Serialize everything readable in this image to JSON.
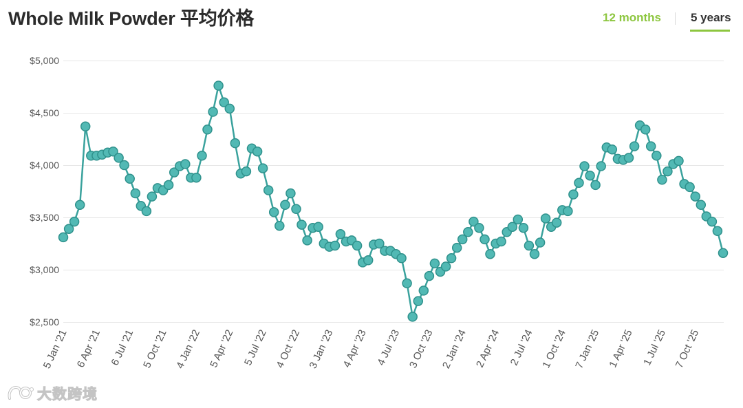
{
  "header": {
    "title": "Whole Milk Powder 平均价格",
    "tabs": [
      {
        "label": "12 months",
        "active": false
      },
      {
        "label": "5 years",
        "active": true
      }
    ],
    "accent_color": "#8dc63f",
    "active_tab_color": "#333333"
  },
  "chart_data": {
    "type": "line",
    "ylim": [
      2500,
      5000
    ],
    "yticks": [
      2500,
      3000,
      3500,
      4000,
      4500,
      5000
    ],
    "ytick_labels": [
      "$2,500",
      "$3,000",
      "$3,500",
      "$4,000",
      "$4,500",
      "$5,000"
    ],
    "xtick_labels": [
      "5 Jan '21",
      "6 Apr '21",
      "6 Jul '21",
      "5 Oct '21",
      "4 Jan '22",
      "5 Apr '22",
      "5 Jul '22",
      "4 Oct '22",
      "3 Jan '23",
      "4 Apr '23",
      "4 Jul '23",
      "3 Oct '23",
      "2 Jan '24",
      "2 Apr '24",
      "2 Jul '24",
      "1 Oct '24",
      "7 Jan '25",
      "1 Apr '25",
      "1 Jul '25",
      "7 Oct '25"
    ],
    "grid": "horizontal",
    "legend": "none",
    "series": [
      {
        "values": [
          3310,
          3390,
          3460,
          3620,
          4370,
          4090,
          4090,
          4100,
          4120,
          4130,
          4070,
          4000,
          3870,
          3730,
          3610,
          3560,
          3700,
          3780,
          3760,
          3810,
          3930,
          3990,
          4010,
          3880,
          3880,
          4090,
          4340,
          4510,
          4760,
          4600,
          4540,
          4210,
          3920,
          3940,
          4160,
          4130,
          3970,
          3760,
          3550,
          3420,
          3620,
          3730,
          3580,
          3430,
          3280,
          3400,
          3410,
          3250,
          3220,
          3230,
          3340,
          3270,
          3280,
          3230,
          3070,
          3090,
          3240,
          3250,
          3180,
          3180,
          3150,
          3110,
          2870,
          2550,
          2700,
          2800,
          2940,
          3060,
          2980,
          3030,
          3110,
          3210,
          3290,
          3360,
          3460,
          3400,
          3290,
          3150,
          3250,
          3270,
          3360,
          3410,
          3480,
          3400,
          3230,
          3150,
          3260,
          3490,
          3410,
          3450,
          3570,
          3560,
          3720,
          3830,
          3990,
          3900,
          3810,
          3990,
          4170,
          4150,
          4060,
          4050,
          4070,
          4180,
          4380,
          4340,
          4180,
          4090,
          3860,
          3940,
          4010,
          4040,
          3820,
          3790,
          3700,
          3620,
          3510,
          3460,
          3370,
          3160
        ],
        "line_color": "#3aa29d",
        "marker_fill": "#52b9b4",
        "marker_stroke": "#2f918c"
      }
    ]
  },
  "watermark": {
    "text": "大数跨境"
  }
}
